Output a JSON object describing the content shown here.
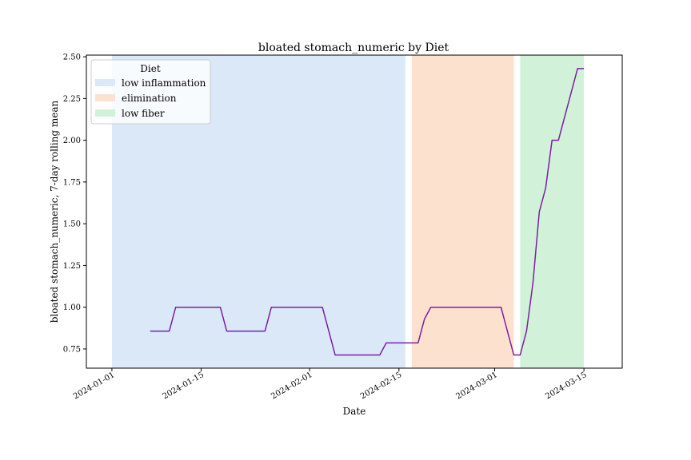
{
  "chart_data": {
    "type": "line",
    "title": "bloated stomach_numeric by Diet",
    "xlabel": "Date",
    "ylabel": "bloated stomach_numeric, 7-day rolling mean",
    "xlim": [
      "2023-12-28",
      "2024-03-21"
    ],
    "ylim": [
      0.635,
      2.51
    ],
    "x_ticks": [
      "2024-01-01",
      "2024-01-15",
      "2024-02-01",
      "2024-02-15",
      "2024-03-01",
      "2024-03-15"
    ],
    "y_ticks": [
      "0.75",
      "1.00",
      "1.25",
      "1.50",
      "1.75",
      "2.00",
      "2.25",
      "2.50"
    ],
    "grid": false,
    "legend": {
      "title": "Diet",
      "placement": "upper-left",
      "entries": [
        {
          "label": "low inflammation",
          "color": "#dae8f8"
        },
        {
          "label": "elimination",
          "color": "#fde1cf"
        },
        {
          "label": "low fiber",
          "color": "#d1f2d9"
        }
      ]
    },
    "regions": [
      {
        "name": "low inflammation",
        "start": "2024-01-01",
        "end": "2024-02-16",
        "color": "#dae8f8"
      },
      {
        "name": "elimination",
        "start": "2024-02-17",
        "end": "2024-03-04",
        "color": "#fde1cf"
      },
      {
        "name": "low fiber",
        "start": "2024-03-05",
        "end": "2024-03-15",
        "color": "#d1f2d9"
      }
    ],
    "series": [
      {
        "color": "#7b1fa2",
        "points": [
          [
            "2024-01-07",
            0.857
          ],
          [
            "2024-01-10",
            0.857
          ],
          [
            "2024-01-11",
            1.0
          ],
          [
            "2024-01-18",
            1.0
          ],
          [
            "2024-01-19",
            0.857
          ],
          [
            "2024-01-25",
            0.857
          ],
          [
            "2024-01-26",
            1.0
          ],
          [
            "2024-02-03",
            1.0
          ],
          [
            "2024-02-05",
            0.714
          ],
          [
            "2024-02-12",
            0.714
          ],
          [
            "2024-02-13",
            0.786
          ],
          [
            "2024-02-18",
            0.786
          ],
          [
            "2024-02-19",
            0.929
          ],
          [
            "2024-02-20",
            1.0
          ],
          [
            "2024-03-02",
            1.0
          ],
          [
            "2024-03-04",
            0.714
          ],
          [
            "2024-03-05",
            0.714
          ],
          [
            "2024-03-06",
            0.857
          ],
          [
            "2024-03-07",
            1.143
          ],
          [
            "2024-03-08",
            1.571
          ],
          [
            "2024-03-09",
            1.714
          ],
          [
            "2024-03-10",
            2.0
          ],
          [
            "2024-03-11",
            2.0
          ],
          [
            "2024-03-14",
            2.429
          ],
          [
            "2024-03-15",
            2.429
          ]
        ]
      }
    ]
  }
}
